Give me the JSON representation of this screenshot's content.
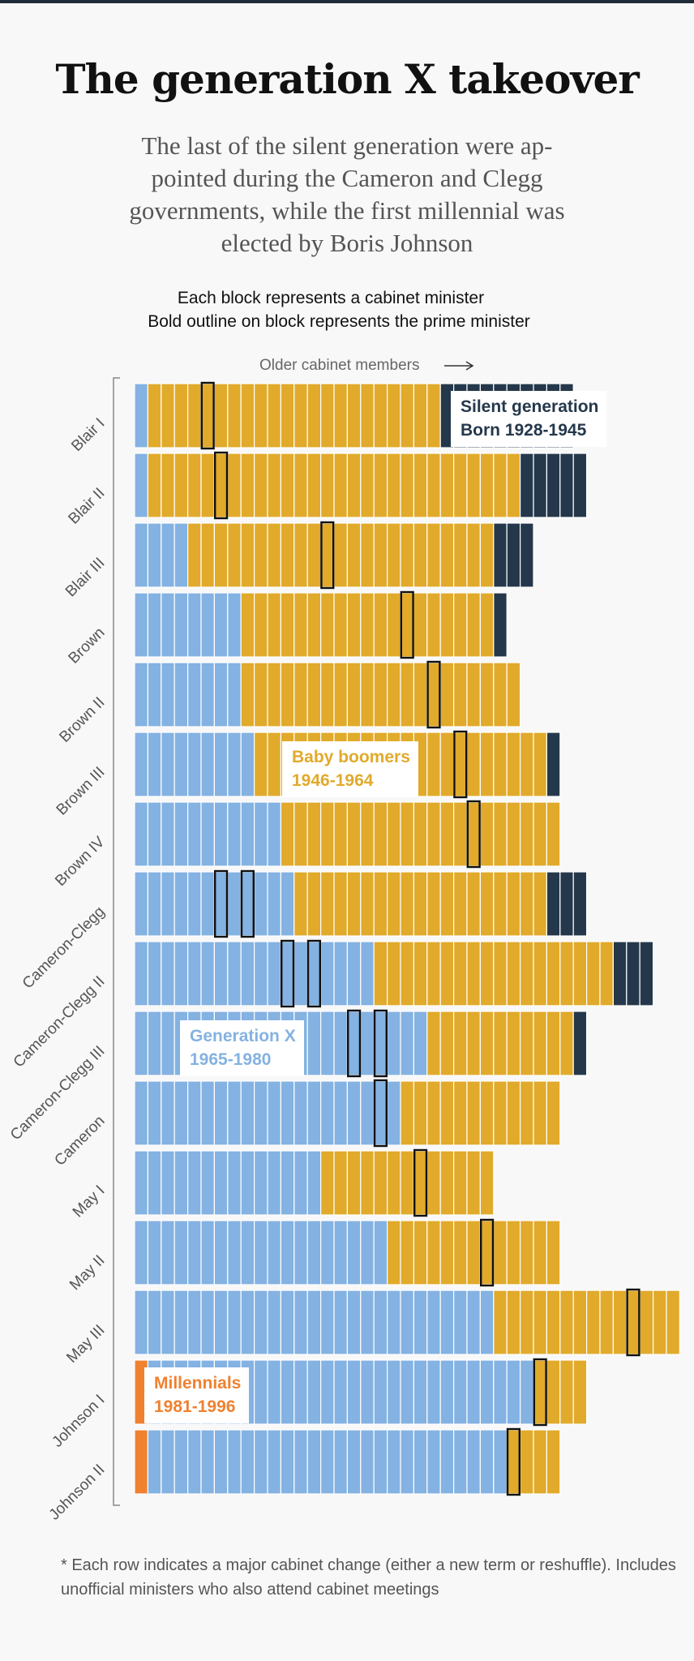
{
  "title": "The generation X takeover",
  "subtitle": "The last of the silent generation were ap-pointed during the Cameron and Clegg governments, while the first millennial was elected by Boris Johnson",
  "notes": {
    "line1": "Each block represents a cabinet minister",
    "line2": "Bold outline on block represents the prime minister"
  },
  "older_label": "Older cabinet members",
  "footnote": "* Each row indicates a major cabinet change (either a new term or reshuffle). Includes unofficial ministers who also attend cabinet meetings",
  "colors": {
    "millennials": "#f08130",
    "generation_x": "#84b2e2",
    "baby_boomers": "#e1aa2b",
    "silent_generation": "#25384b"
  },
  "chart_data": {
    "type": "bar",
    "orientation": "horizontal",
    "unit": "one block per cabinet minister; blocks ordered youngest to oldest",
    "categories": [
      "Blair I",
      "Blair II",
      "Blair III",
      "Brown",
      "Brown II",
      "Brown III",
      "Brown IV",
      "Cameron-Clegg",
      "Cameron-Clegg II",
      "Cameron-Clegg III",
      "Cameron",
      "May I",
      "May II",
      "May III",
      "Johnson I",
      "Johnson II"
    ],
    "series": [
      {
        "name": "Millennials",
        "range": "1981-1996",
        "key": "millennials",
        "values": [
          0,
          0,
          0,
          0,
          0,
          0,
          0,
          0,
          0,
          0,
          0,
          0,
          0,
          0,
          1,
          1
        ]
      },
      {
        "name": "Generation X",
        "range": "1965-1980",
        "key": "generation_x",
        "values": [
          1,
          1,
          4,
          8,
          8,
          9,
          11,
          12,
          18,
          22,
          20,
          14,
          19,
          27,
          29,
          27
        ]
      },
      {
        "name": "Baby boomers",
        "range": "1946-1964",
        "key": "baby_boomers",
        "values": [
          22,
          28,
          23,
          19,
          21,
          22,
          21,
          19,
          18,
          11,
          12,
          13,
          13,
          14,
          4,
          4
        ]
      },
      {
        "name": "Silent generation",
        "range": "Born 1928-1945",
        "key": "silent_generation",
        "values": [
          10,
          5,
          3,
          1,
          0,
          1,
          0,
          3,
          3,
          1,
          0,
          0,
          0,
          0,
          0,
          0
        ]
      }
    ],
    "prime_minister_block_index": [
      [
        5
      ],
      [
        6
      ],
      [
        14
      ],
      [
        20
      ],
      [
        22
      ],
      [
        24
      ],
      [
        25
      ],
      [
        6,
        8
      ],
      [
        11,
        13
      ],
      [
        16,
        18
      ],
      [
        18
      ],
      [
        21
      ],
      [
        26
      ],
      [
        37
      ],
      [
        30
      ],
      [
        28
      ]
    ],
    "legend": "annotations inside chart"
  }
}
